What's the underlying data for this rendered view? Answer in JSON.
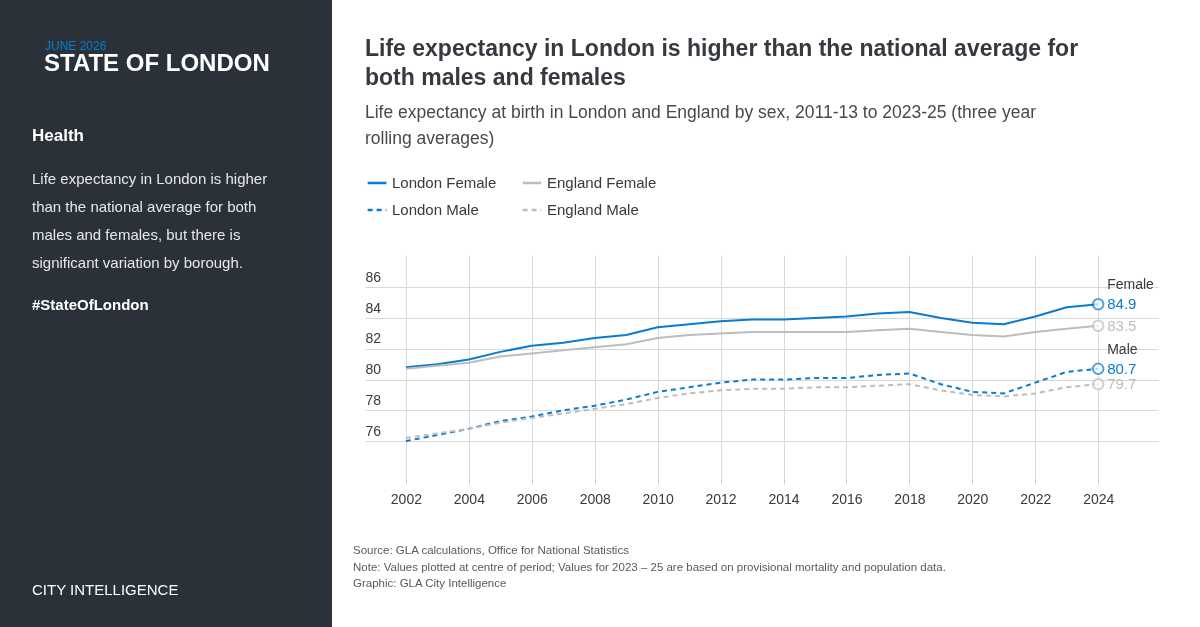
{
  "chart_data": [
    {
      "type": "other",
      "subtitle": "JUNE 2026",
      "title": "STATE OF LONDON",
      "annotations": [
        "Health",
        "Life expectancy in London is higher than the national average for both males and females, but there is significant variation by borough.",
        "#StateOfLondon",
        "CITY INTELLIGENCE"
      ]
    },
    {
      "type": "line",
      "title": "Life expectancy in London is higher than the national average for both males and females",
      "subtitle": "Life expectancy at birth in London and England by sex, 2011-13 to 2023-25 (three year rolling averages)",
      "x": [
        2002,
        2003,
        2004,
        2005,
        2006,
        2007,
        2008,
        2009,
        2010,
        2011,
        2012,
        2013,
        2014,
        2015,
        2016,
        2017,
        2018,
        2019,
        2020,
        2021,
        2022,
        2023,
        2024
      ],
      "series": [
        {
          "name": "London Female",
          "color": "#0a7bd0",
          "line_style": "solid",
          "values": [
            80.8,
            81.0,
            81.3,
            81.8,
            82.2,
            82.4,
            82.7,
            82.9,
            83.4,
            83.6,
            83.8,
            83.9,
            83.9,
            84.0,
            84.1,
            84.3,
            84.4,
            84.0,
            83.7,
            83.6,
            84.1,
            84.7,
            84.9
          ],
          "value_labels": [
            null,
            null,
            null,
            null,
            null,
            null,
            null,
            null,
            null,
            null,
            null,
            null,
            null,
            null,
            null,
            null,
            null,
            null,
            null,
            null,
            null,
            null,
            "84.9"
          ]
        },
        {
          "name": "England Female",
          "color": "#bdbdbd",
          "line_style": "solid",
          "values": [
            80.7,
            80.9,
            81.1,
            81.5,
            81.7,
            81.9,
            82.1,
            82.3,
            82.7,
            82.9,
            83.0,
            83.1,
            83.1,
            83.1,
            83.1,
            83.2,
            83.3,
            83.1,
            82.9,
            82.8,
            83.1,
            83.3,
            83.5
          ],
          "value_labels": [
            null,
            null,
            null,
            null,
            null,
            null,
            null,
            null,
            null,
            null,
            null,
            null,
            null,
            null,
            null,
            null,
            null,
            null,
            null,
            null,
            null,
            null,
            "83.5"
          ]
        },
        {
          "name": "London Male",
          "color": "#0a7bd0",
          "line_style": "dashed",
          "values": [
            76.0,
            76.4,
            76.8,
            77.3,
            77.6,
            78.0,
            78.3,
            78.7,
            79.2,
            79.5,
            79.8,
            80.0,
            80.0,
            80.1,
            80.1,
            80.3,
            80.4,
            79.7,
            79.2,
            79.1,
            79.8,
            80.5,
            80.7
          ],
          "value_labels": [
            null,
            null,
            null,
            null,
            null,
            null,
            null,
            null,
            null,
            null,
            null,
            null,
            null,
            null,
            null,
            null,
            null,
            null,
            null,
            null,
            null,
            null,
            "80.7"
          ]
        },
        {
          "name": "England Male",
          "color": "#bdbdbd",
          "line_style": "dashed",
          "values": [
            76.2,
            76.5,
            76.8,
            77.2,
            77.5,
            77.8,
            78.1,
            78.4,
            78.8,
            79.1,
            79.3,
            79.4,
            79.4,
            79.5,
            79.5,
            79.6,
            79.7,
            79.3,
            79.0,
            78.9,
            79.1,
            79.5,
            79.7
          ],
          "value_labels": [
            null,
            null,
            null,
            null,
            null,
            null,
            null,
            null,
            null,
            null,
            null,
            null,
            null,
            null,
            null,
            null,
            null,
            null,
            null,
            null,
            null,
            null,
            "79.7"
          ]
        }
      ],
      "xlim": [
        2000.7,
        2025.9
      ],
      "xticks": [
        2002,
        2004,
        2006,
        2008,
        2010,
        2012,
        2014,
        2016,
        2018,
        2020,
        2022,
        2024
      ],
      "ylim": [
        73.6,
        88.1
      ],
      "yticks": [
        76,
        78,
        80,
        82,
        84,
        86
      ],
      "grid": true,
      "legend": "top left",
      "annotations": [
        {
          "text": "Female",
          "x": 2024,
          "y": 84.9
        },
        {
          "text": "Male",
          "x": 2024,
          "y": 80.7
        },
        "Source: GLA calculations, Office for National Statistics",
        "Note: Values plotted at centre of period; Values for 2023 – 25 are based on provisional mortality and population data.",
        "Graphic: GLA City Intelligence"
      ]
    }
  ]
}
